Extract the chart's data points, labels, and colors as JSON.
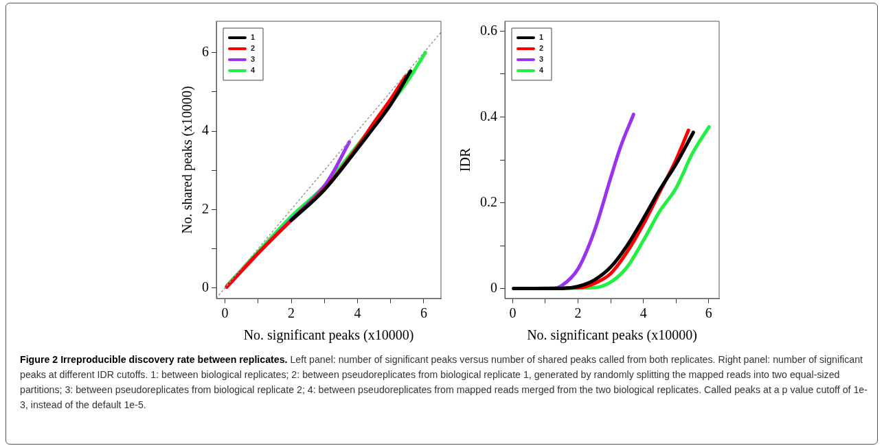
{
  "chart_data": [
    {
      "type": "line",
      "xlabel": "No. significant peaks (x10000)",
      "ylabel": "No. shared peaks (x10000)",
      "xlim": [
        -0.26,
        6.52
      ],
      "ylim": [
        -0.27,
        6.8
      ],
      "xticks": [
        0,
        {
          "value": 1,
          "label": null
        },
        2,
        {
          "value": 3,
          "label": null
        },
        4,
        {
          "value": 5,
          "label": null
        },
        6
      ],
      "yticks": [
        0,
        {
          "value": 1,
          "label": null
        },
        2,
        {
          "value": 3,
          "label": null
        },
        4,
        {
          "value": 5,
          "label": null
        },
        6
      ],
      "grid": false,
      "legend": "top left",
      "marker": "none",
      "annotations": [
        "Figure 2 Irreproducible discovery rate between replicates.",
        "Left panel: number of significant peaks versus number of shared peaks called from both replicates. Right panel: number of significant peaks at different IDR cutoffs. 1: between biological replicates; 2: between pseudoreplicates from biological replicate 1, generated by randomly splitting the mapped reads into two equal-sized partitions; 3: between pseudoreplicates from biological replicate 2; 4: between pseudoreplicates from mapped reads merged from the two biological replicates. Called peaks at a p value cutoff of 1e-3, instead of the default 1e-5."
      ],
      "series": [
        {
          "color": "#999999",
          "line_style": "dotted",
          "x": [
            -0.26,
            6.52
          ],
          "values": [
            -0.26,
            6.52
          ]
        },
        {
          "name": "1",
          "color": "#000000",
          "x": [
            2,
            3,
            4,
            4.5,
            5,
            5.6
          ],
          "values": [
            1.72,
            2.5,
            3.55,
            4.1,
            4.67,
            5.53
          ]
        },
        {
          "name": "2",
          "color": "#ff0000",
          "x": [
            0.05,
            1,
            2,
            3,
            4,
            4.5,
            5,
            5.45
          ],
          "values": [
            0.02,
            0.88,
            1.72,
            2.52,
            3.6,
            4.22,
            4.81,
            5.4
          ]
        },
        {
          "name": "3",
          "color": "#9933ee",
          "x": [
            0.05,
            1,
            2,
            3,
            3.3,
            3.75
          ],
          "values": [
            0.02,
            0.88,
            1.74,
            2.6,
            3.0,
            3.72
          ]
        },
        {
          "name": "4",
          "color": "#22ee44",
          "x": [
            0.05,
            1,
            2,
            3,
            4,
            5,
            5.5,
            6.05
          ],
          "values": [
            0.05,
            0.92,
            1.82,
            2.6,
            3.64,
            4.7,
            5.26,
            6.0
          ]
        }
      ]
    },
    {
      "type": "line",
      "xlabel": "No. significant peaks (x10000)",
      "ylabel": "IDR",
      "xlim": [
        -0.24,
        6.32
      ],
      "ylim": [
        -0.023,
        0.623
      ],
      "xticks": [
        0,
        {
          "value": 1,
          "label": null
        },
        2,
        {
          "value": 3,
          "label": null
        },
        4,
        {
          "value": 5,
          "label": null
        },
        6
      ],
      "yticks": [
        0,
        {
          "value": 0.1,
          "label": null
        },
        0.2,
        {
          "value": 0.3,
          "label": null
        },
        0.4,
        {
          "value": 0.5,
          "label": null
        },
        0.6
      ],
      "grid": false,
      "legend": "top left",
      "marker": "none",
      "series": [
        {
          "name": "1",
          "color": "#000000",
          "x": [
            0.03,
            1.5,
            2,
            2.5,
            3,
            3.5,
            4,
            4.5,
            5,
            5.53
          ],
          "values": [
            0,
            0,
            0.005,
            0.02,
            0.05,
            0.1,
            0.163,
            0.23,
            0.29,
            0.364
          ]
        },
        {
          "name": "2",
          "color": "#ff0000",
          "x": [
            0.03,
            2,
            2.5,
            3,
            3.5,
            4,
            4.5,
            5,
            5.38
          ],
          "values": [
            0,
            0.002,
            0.012,
            0.035,
            0.085,
            0.15,
            0.225,
            0.3,
            0.369
          ]
        },
        {
          "name": "3",
          "color": "#9933ee",
          "x": [
            0.03,
            1.2,
            1.5,
            2,
            2.5,
            3,
            3.3,
            3.7
          ],
          "values": [
            0,
            0,
            0.007,
            0.046,
            0.134,
            0.258,
            0.33,
            0.406
          ]
        },
        {
          "name": "4",
          "color": "#22ee44",
          "x": [
            0.03,
            2.5,
            3,
            3.5,
            4,
            4.5,
            5,
            5.5,
            6.01
          ],
          "values": [
            0,
            0.002,
            0.015,
            0.05,
            0.112,
            0.18,
            0.234,
            0.315,
            0.377
          ]
        }
      ]
    }
  ]
}
